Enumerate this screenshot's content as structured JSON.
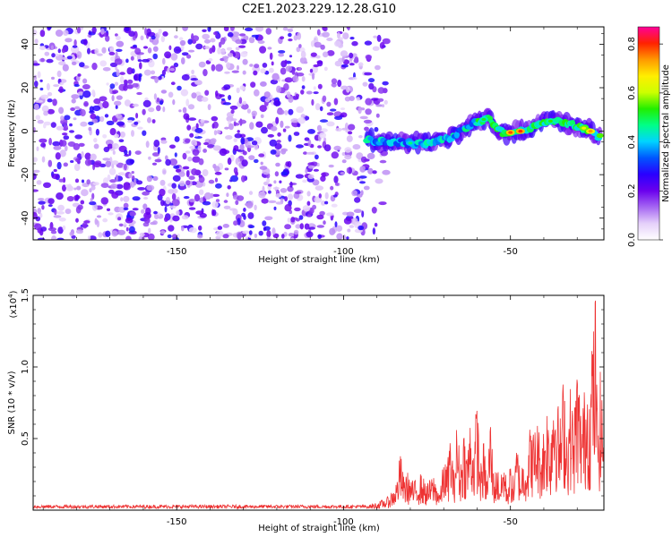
{
  "title": "C2E1.2023.229.12.28.G10",
  "chart_data": [
    {
      "type": "heatmap",
      "name": "spectrogram",
      "xlabel": "Height of straight line (km)",
      "ylabel": "Frequency (Hz)",
      "xlim": [
        -193,
        -22
      ],
      "ylim": [
        -50,
        48
      ],
      "xticks": [
        -150,
        -100,
        -50
      ],
      "xtick_labels": [
        "-150",
        "-100",
        "-50"
      ],
      "yticks": [
        40,
        20,
        0,
        -20,
        -40
      ],
      "ytick_labels": [
        "40",
        "20",
        "0",
        "-20",
        "-40"
      ],
      "noise_region_x": [
        -193,
        -90
      ],
      "signal_trace": [
        {
          "x": -93,
          "y": -4
        },
        {
          "x": -85,
          "y": -5
        },
        {
          "x": -75,
          "y": -6
        },
        {
          "x": -68,
          "y": -3
        },
        {
          "x": -62,
          "y": 3
        },
        {
          "x": -57,
          "y": 6
        },
        {
          "x": -52,
          "y": -1
        },
        {
          "x": -47,
          "y": 0
        },
        {
          "x": -42,
          "y": 3
        },
        {
          "x": -37,
          "y": 5
        },
        {
          "x": -32,
          "y": 3
        },
        {
          "x": -27,
          "y": 1
        },
        {
          "x": -23,
          "y": -3
        }
      ],
      "colorbar": {
        "label": "Normalized spectral amplitude",
        "range": [
          0,
          0.87
        ],
        "ticks": [
          0.0,
          0.2,
          0.4,
          0.6,
          0.8
        ],
        "tick_labels": [
          "0.0",
          "0.2",
          "0.4",
          "0.6",
          "0.8"
        ],
        "colors": [
          "#ffffff",
          "#e5d0fa",
          "#a566f2",
          "#6a00ee",
          "#2a00ff",
          "#0056ff",
          "#00d4ff",
          "#00ff88",
          "#22ee00",
          "#ccff00",
          "#ffee00",
          "#ff9900",
          "#ff2200",
          "#ff0099"
        ]
      }
    },
    {
      "type": "line",
      "name": "snr",
      "xlabel": "Height of straight line (km)",
      "ylabel": "SNR (10 * v/v)",
      "multiplier": "(x10",
      "multiplier_exp": "4",
      "multiplier_close": ")",
      "xlim": [
        -193,
        -22
      ],
      "ylim": [
        0,
        1.5
      ],
      "xticks": [
        -150,
        -100,
        -50
      ],
      "xtick_labels": [
        "-150",
        "-100",
        "-50"
      ],
      "yticks": [
        0.5,
        1.0,
        1.5
      ],
      "ytick_labels": [
        "0.5",
        "1.0",
        "1.5"
      ],
      "series": [
        {
          "name": "SNR",
          "color": "#ee3333",
          "x": [
            -193,
            -180,
            -170,
            -160,
            -150,
            -140,
            -130,
            -120,
            -110,
            -100,
            -94,
            -90,
            -87,
            -85,
            -84,
            -83,
            -82,
            -81,
            -79,
            -77,
            -75,
            -73,
            -71,
            -70,
            -69,
            -68,
            -67,
            -66,
            -65,
            -64,
            -63,
            -62,
            -61,
            -60,
            -59,
            -58,
            -57,
            -56,
            -55,
            -54,
            -53,
            -52,
            -51,
            -50,
            -49,
            -48,
            -47,
            -46,
            -45,
            -44,
            -43,
            -42,
            -41,
            -40,
            -39,
            -38,
            -37,
            -36,
            -35,
            -34,
            -33,
            -32,
            -31,
            -30,
            -29,
            -28,
            -27,
            -26,
            -25.5,
            -25,
            -24.5,
            -24,
            -23,
            -22
          ],
          "y": [
            0.02,
            0.02,
            0.03,
            0.02,
            0.02,
            0.03,
            0.02,
            0.02,
            0.03,
            0.02,
            0.03,
            0.05,
            0.08,
            0.14,
            0.2,
            0.38,
            0.22,
            0.25,
            0.18,
            0.24,
            0.17,
            0.23,
            0.12,
            0.35,
            0.28,
            0.52,
            0.25,
            0.6,
            0.3,
            0.55,
            0.38,
            0.62,
            0.42,
            0.76,
            0.28,
            0.45,
            0.2,
            0.65,
            0.22,
            0.3,
            0.18,
            0.35,
            0.16,
            0.3,
            0.2,
            0.45,
            0.25,
            0.38,
            0.35,
            0.58,
            0.5,
            0.62,
            0.45,
            0.56,
            0.7,
            0.52,
            1.0,
            0.72,
            0.6,
            0.92,
            0.55,
            0.82,
            0.6,
            1.02,
            0.7,
            0.75,
            0.95,
            0.78,
            1.35,
            1.12,
            1.5,
            0.66,
            0.9,
            0.6
          ]
        }
      ]
    }
  ]
}
